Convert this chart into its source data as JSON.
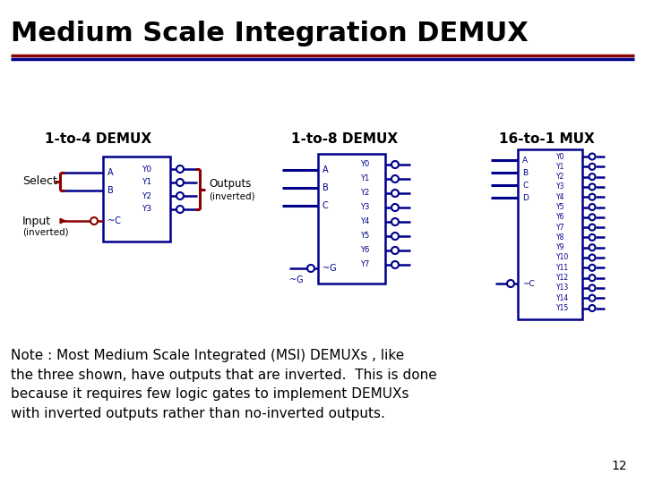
{
  "title": "Medium Scale Integration DEMUX",
  "title_fontsize": 22,
  "title_color": "#000000",
  "line1_color": "#8B0000",
  "line2_color": "#00008B",
  "subtitle1": "1-to-4 DEMUX",
  "subtitle2": "1-to-8 DEMUX",
  "subtitle3": "16-to-1 MUX",
  "subtitle_fontsize": 11,
  "note_text": "Note : Most Medium Scale Integrated (MSI) DEMUXs , like\nthe three shown, have outputs that are inverted.  This is done\nbecause it requires few logic gates to implement DEMUXs\nwith inverted outputs rather than no-inverted outputs.",
  "note_fontsize": 11,
  "page_number": "12",
  "box_color": "#00008B",
  "select_color": "#8B0000",
  "wire_color": "#00008B",
  "text_color": "#00008B",
  "label_color": "#000000",
  "bg_color": "#ffffff"
}
